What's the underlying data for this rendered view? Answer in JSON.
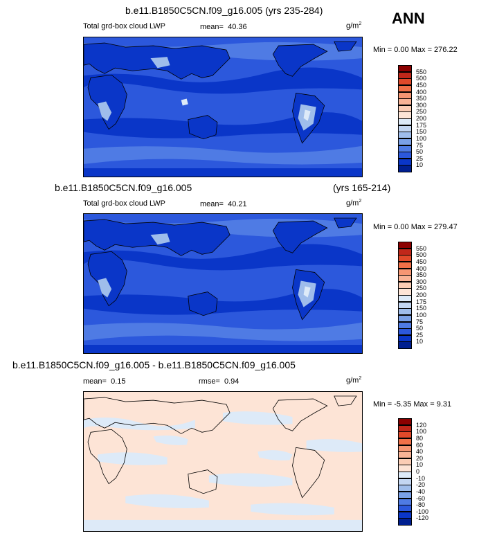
{
  "season": "ANN",
  "panels": [
    {
      "title": "b.e11.B1850C5CN.f09_g16.005 (yrs 235-284)",
      "variable": "Total grd-box cloud LWP",
      "stat_label": "mean=",
      "stat_value": "40.36",
      "units_base": "g/m",
      "units_exp": "2",
      "range": "Min =   0.00 Max = 276.22",
      "levels": [
        "550",
        "500",
        "450",
        "400",
        "350",
        "300",
        "250",
        "200",
        "175",
        "150",
        "100",
        "75",
        "50",
        "25",
        "10"
      ],
      "colors": [
        "#8b0000",
        "#c0271a",
        "#e0492a",
        "#f07048",
        "#f59673",
        "#f8b396",
        "#fbcdb5",
        "#fde4d6",
        "#ddeaf8",
        "#c3d6f2",
        "#9fbdeb",
        "#7aa0e6",
        "#4f7be4",
        "#2c58dc",
        "#0a36c8",
        "#001f90"
      ]
    },
    {
      "title_left": "b.e11.B1850C5CN.f09_g16.005",
      "title_right": "(yrs 165-214)",
      "variable": "Total grd-box cloud LWP",
      "stat_label": "mean=",
      "stat_value": "40.21",
      "units_base": "g/m",
      "units_exp": "2",
      "range": "Min =   0.00 Max = 279.47",
      "levels": [
        "550",
        "500",
        "450",
        "400",
        "350",
        "300",
        "250",
        "200",
        "175",
        "150",
        "100",
        "75",
        "50",
        "25",
        "10"
      ],
      "colors": [
        "#8b0000",
        "#c0271a",
        "#e0492a",
        "#f07048",
        "#f59673",
        "#f8b396",
        "#fbcdb5",
        "#fde4d6",
        "#ddeaf8",
        "#c3d6f2",
        "#9fbdeb",
        "#7aa0e6",
        "#4f7be4",
        "#2c58dc",
        "#0a36c8",
        "#001f90"
      ]
    },
    {
      "title": "b.e11.B1850C5CN.f09_g16.005 - b.e11.B1850C5CN.f09_g16.005",
      "stat_label": "mean=",
      "stat_value": "0.15",
      "rmse_label": "rmse=",
      "rmse_value": "0.94",
      "units_base": "g/m",
      "units_exp": "2",
      "range": "Min =  -5.35 Max =   9.31",
      "levels": [
        "120",
        "100",
        "80",
        "60",
        "40",
        "20",
        "10",
        "0",
        "-10",
        "-20",
        "-40",
        "-60",
        "-80",
        "-100",
        "-120"
      ],
      "colors": [
        "#8b0000",
        "#c0271a",
        "#e0492a",
        "#f07048",
        "#f59673",
        "#f8b396",
        "#fbcdb5",
        "#fde4d6",
        "#ddeaf8",
        "#c3d6f2",
        "#9fbdeb",
        "#7aa0e6",
        "#4f7be4",
        "#2c58dc",
        "#0a36c8",
        "#001f90"
      ]
    }
  ]
}
